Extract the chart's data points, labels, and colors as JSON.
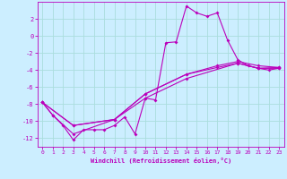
{
  "background_color": "#cceeff",
  "grid_color": "#aadddd",
  "line_color": "#bb00bb",
  "xlim": [
    -0.5,
    23.5
  ],
  "ylim": [
    -13,
    4
  ],
  "yticks": [
    2,
    0,
    -2,
    -4,
    -6,
    -8,
    -10,
    -12
  ],
  "xticks": [
    0,
    1,
    2,
    3,
    4,
    5,
    6,
    7,
    8,
    9,
    10,
    11,
    12,
    13,
    14,
    15,
    16,
    17,
    18,
    19,
    20,
    21,
    22,
    23
  ],
  "xlabel": "Windchill (Refroidissement éolien,°C)",
  "line1_x": [
    0,
    1,
    2,
    3,
    4,
    5,
    6,
    7,
    8,
    9,
    10,
    11,
    12,
    13,
    14,
    15,
    16,
    17,
    18,
    19,
    20,
    21,
    22,
    23
  ],
  "line1_y": [
    -7.8,
    -9.3,
    -10.5,
    -12.2,
    -11.0,
    -11.0,
    -11.0,
    -10.5,
    -9.5,
    -11.5,
    -7.3,
    -7.5,
    -0.8,
    -0.7,
    3.5,
    2.7,
    2.3,
    2.7,
    -0.5,
    -2.8,
    -3.5,
    -3.8,
    -4.0,
    -3.8
  ],
  "line2_x": [
    0,
    1,
    3,
    7,
    10,
    14,
    19,
    21,
    23
  ],
  "line2_y": [
    -7.8,
    -9.3,
    -11.5,
    -9.8,
    -7.3,
    -5.0,
    -3.2,
    -3.8,
    -3.8
  ],
  "line3_x": [
    0,
    3,
    7,
    10,
    14,
    17,
    19,
    21,
    23
  ],
  "line3_y": [
    -7.8,
    -10.5,
    -9.8,
    -6.8,
    -4.5,
    -3.7,
    -3.2,
    -3.8,
    -3.7
  ],
  "line4_x": [
    0,
    3,
    7,
    10,
    14,
    17,
    19,
    21,
    23
  ],
  "line4_y": [
    -7.8,
    -10.5,
    -9.8,
    -6.8,
    -4.5,
    -3.5,
    -3.0,
    -3.5,
    -3.7
  ]
}
